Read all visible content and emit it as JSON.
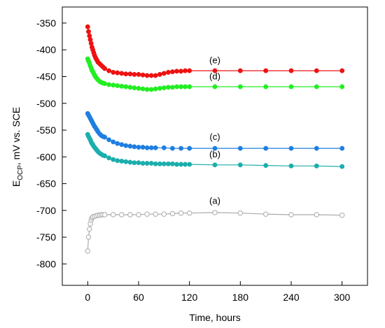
{
  "chart_data": {
    "type": "line",
    "title": "",
    "xlabel": "Time, hours",
    "ylabel_main": "E",
    "ylabel_sub": "OCP",
    "ylabel_rest": ", mV vs. SCE",
    "xlim": [
      -30,
      330
    ],
    "ylim": [
      -840,
      -320
    ],
    "xticks": [
      0,
      60,
      120,
      180,
      240,
      300
    ],
    "yticks": [
      -350,
      -400,
      -450,
      -500,
      -550,
      -600,
      -650,
      -700,
      -750,
      -800
    ],
    "grid": false,
    "legend": "none",
    "series": [
      {
        "name": "(a)",
        "color": "#aaaaaa",
        "marker": "open-circle",
        "x": [
          0,
          1,
          2,
          3,
          4,
          5,
          6,
          8,
          10,
          12,
          14,
          16,
          18,
          20,
          30,
          40,
          50,
          60,
          70,
          80,
          90,
          100,
          110,
          120,
          150,
          180,
          210,
          240,
          270,
          300
        ],
        "y": [
          -776,
          -750,
          -735,
          -725,
          -718,
          -714,
          -712,
          -711,
          -710,
          -709,
          -709,
          -708,
          -708,
          -708,
          -708,
          -708,
          -708,
          -708,
          -707,
          -707,
          -707,
          -706,
          -705,
          -705,
          -704,
          -705,
          -707,
          -708,
          -708,
          -709
        ]
      },
      {
        "name": "(b)",
        "color": "#1aaeac",
        "marker": "filled-circle",
        "x": [
          0,
          1,
          2,
          3,
          4,
          5,
          6,
          7,
          8,
          9,
          10,
          11,
          12,
          14,
          16,
          18,
          20,
          25,
          30,
          35,
          40,
          45,
          50,
          55,
          60,
          65,
          70,
          75,
          80,
          85,
          90,
          95,
          100,
          105,
          110,
          115,
          120,
          150,
          180,
          210,
          240,
          270,
          300
        ],
        "y": [
          -558,
          -562,
          -565,
          -568,
          -572,
          -575,
          -577,
          -580,
          -582,
          -584,
          -586,
          -588,
          -590,
          -593,
          -595,
          -597,
          -598,
          -602,
          -605,
          -607,
          -608,
          -609,
          -610,
          -611,
          -611,
          -612,
          -612,
          -612,
          -613,
          -613,
          -613,
          -613,
          -613,
          -614,
          -614,
          -614,
          -614,
          -615,
          -615,
          -616,
          -617,
          -617,
          -618
        ]
      },
      {
        "name": "(c)",
        "color": "#1e7fe0",
        "marker": "filled-circle",
        "x": [
          0,
          1,
          2,
          3,
          4,
          5,
          6,
          7,
          8,
          9,
          10,
          11,
          12,
          14,
          16,
          18,
          20,
          25,
          30,
          35,
          40,
          45,
          50,
          55,
          60,
          65,
          70,
          75,
          80,
          90,
          100,
          110,
          120,
          150,
          180,
          210,
          240,
          270,
          300
        ],
        "y": [
          -519,
          -522,
          -525,
          -528,
          -531,
          -534,
          -537,
          -540,
          -543,
          -545,
          -548,
          -550,
          -553,
          -557,
          -560,
          -562,
          -563,
          -568,
          -572,
          -575,
          -577,
          -579,
          -580,
          -581,
          -582,
          -582,
          -583,
          -583,
          -583,
          -583,
          -584,
          -584,
          -584,
          -584,
          -584,
          -584,
          -584,
          -584,
          -584
        ]
      },
      {
        "name": "(d)",
        "color": "#22ee22",
        "marker": "filled-circle",
        "x": [
          0,
          1,
          2,
          3,
          4,
          5,
          6,
          7,
          8,
          9,
          10,
          11,
          12,
          14,
          16,
          18,
          20,
          25,
          30,
          35,
          40,
          45,
          50,
          55,
          60,
          65,
          70,
          75,
          80,
          85,
          90,
          95,
          100,
          105,
          110,
          115,
          120,
          150,
          180,
          210,
          240,
          270,
          300
        ],
        "y": [
          -417,
          -421,
          -425,
          -430,
          -434,
          -438,
          -441,
          -444,
          -447,
          -450,
          -452,
          -454,
          -456,
          -459,
          -461,
          -462,
          -463,
          -465,
          -466,
          -467,
          -468,
          -469,
          -470,
          -471,
          -472,
          -473,
          -474,
          -474,
          -473,
          -472,
          -471,
          -470,
          -470,
          -469,
          -469,
          -469,
          -469,
          -469,
          -469,
          -469,
          -469,
          -469,
          -469
        ]
      },
      {
        "name": "(e)",
        "color": "#ee1111",
        "marker": "filled-circle",
        "x": [
          0,
          1,
          2,
          3,
          4,
          5,
          6,
          7,
          8,
          9,
          10,
          11,
          12,
          14,
          16,
          18,
          20,
          25,
          30,
          35,
          40,
          45,
          50,
          55,
          60,
          65,
          70,
          75,
          80,
          85,
          90,
          95,
          100,
          105,
          110,
          115,
          120,
          150,
          180,
          210,
          240,
          270,
          300
        ],
        "y": [
          -357,
          -366,
          -374,
          -381,
          -388,
          -395,
          -400,
          -405,
          -410,
          -414,
          -417,
          -420,
          -423,
          -426,
          -429,
          -432,
          -435,
          -439,
          -442,
          -443,
          -444,
          -445,
          -445,
          -446,
          -446,
          -447,
          -448,
          -448,
          -448,
          -446,
          -444,
          -442,
          -441,
          -440,
          -440,
          -439,
          -439,
          -439,
          -439,
          -439,
          -439,
          -439,
          -439
        ]
      }
    ]
  }
}
